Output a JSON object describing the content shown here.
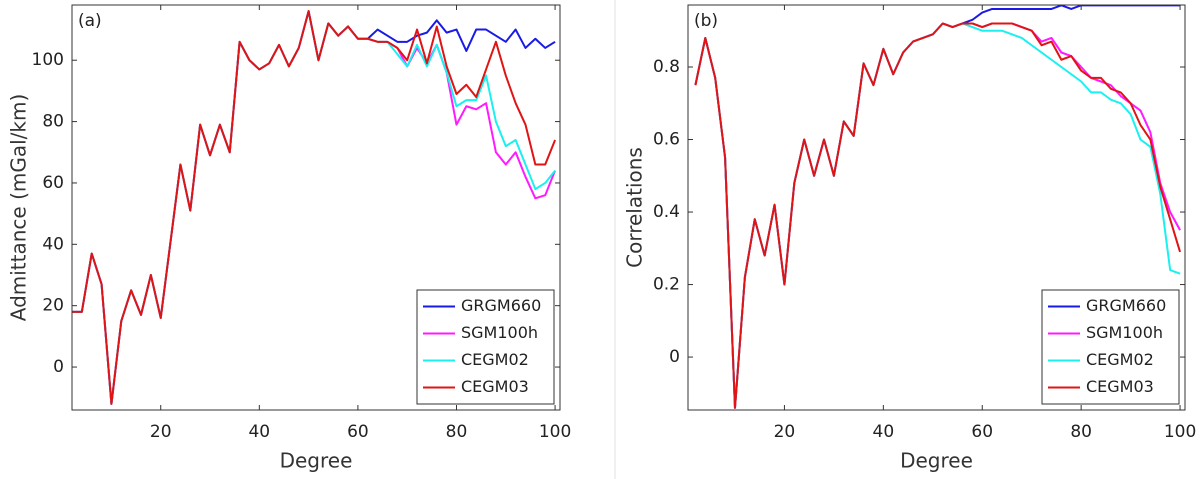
{
  "chart_data": [
    {
      "type": "line",
      "annotation": "(a)",
      "xlabel": "Degree",
      "ylabel": "Admittance (mGal/km)",
      "x": [
        2,
        4,
        6,
        8,
        10,
        12,
        14,
        16,
        18,
        20,
        22,
        24,
        26,
        28,
        30,
        32,
        34,
        36,
        38,
        40,
        42,
        44,
        46,
        48,
        50,
        52,
        54,
        56,
        58,
        60,
        62,
        64,
        66,
        68,
        70,
        72,
        74,
        76,
        78,
        80,
        82,
        84,
        86,
        88,
        90,
        92,
        94,
        96,
        98,
        100
      ],
      "xlim": [
        2,
        101
      ],
      "xticks": [
        20,
        40,
        60,
        80,
        100
      ],
      "ylim": [
        -14,
        118
      ],
      "yticks": [
        0,
        20,
        40,
        60,
        80,
        100
      ],
      "legend": "lower right",
      "series": [
        {
          "name": "GRGM660",
          "color": "#1a1ae6",
          "values": [
            18,
            18,
            37,
            27,
            -12,
            15,
            25,
            17,
            30,
            16,
            41,
            66,
            51,
            79,
            69,
            79,
            70,
            106,
            100,
            97,
            99,
            105,
            98,
            104,
            116,
            100,
            112,
            108,
            111,
            107,
            107,
            110,
            108,
            106,
            106,
            108,
            109,
            113,
            109,
            110,
            103,
            110,
            110,
            108,
            106,
            110,
            104,
            107,
            104,
            106
          ]
        },
        {
          "name": "SGM100h",
          "color": "#ff1aff",
          "values": [
            18,
            18,
            37,
            27,
            -12,
            15,
            25,
            17,
            30,
            16,
            41,
            66,
            51,
            79,
            69,
            79,
            70,
            106,
            100,
            97,
            99,
            105,
            98,
            104,
            116,
            100,
            112,
            108,
            111,
            107,
            107,
            106,
            106,
            104,
            98,
            104,
            99,
            105,
            96,
            79,
            85,
            84,
            86,
            70,
            66,
            70,
            62,
            55,
            56,
            64
          ]
        },
        {
          "name": "CEGM02",
          "color": "#1af0f0",
          "values": [
            18,
            18,
            37,
            27,
            -12,
            15,
            25,
            17,
            30,
            16,
            41,
            66,
            51,
            79,
            69,
            79,
            70,
            106,
            100,
            97,
            99,
            105,
            98,
            104,
            116,
            100,
            112,
            108,
            111,
            107,
            107,
            106,
            106,
            102,
            98,
            105,
            98,
            105,
            96,
            85,
            87,
            87,
            95,
            80,
            72,
            74,
            66,
            58,
            60,
            64
          ]
        },
        {
          "name": "CEGM03",
          "color": "#e01414",
          "values": [
            18,
            18,
            37,
            27,
            -12,
            15,
            25,
            17,
            30,
            16,
            41,
            66,
            51,
            79,
            69,
            79,
            70,
            106,
            100,
            97,
            99,
            105,
            98,
            104,
            116,
            100,
            112,
            108,
            111,
            107,
            107,
            106,
            106,
            104,
            100,
            110,
            99,
            111,
            98,
            89,
            92,
            88,
            97,
            106,
            95,
            86,
            79,
            66,
            66,
            74
          ]
        }
      ]
    },
    {
      "type": "line",
      "annotation": "(b)",
      "xlabel": "Degree",
      "ylabel": "Correlations",
      "x": [
        2,
        4,
        6,
        8,
        10,
        12,
        14,
        16,
        18,
        20,
        22,
        24,
        26,
        28,
        30,
        32,
        34,
        36,
        38,
        40,
        42,
        44,
        46,
        48,
        50,
        52,
        54,
        56,
        58,
        60,
        62,
        64,
        66,
        68,
        70,
        72,
        74,
        76,
        78,
        80,
        82,
        84,
        86,
        88,
        90,
        92,
        94,
        96,
        98,
        100
      ],
      "xlim": [
        0.5,
        101
      ],
      "xticks": [
        20,
        40,
        60,
        80,
        100
      ],
      "ylim": [
        -0.146,
        0.971
      ],
      "yticks": [
        0,
        0.2,
        0.4,
        0.6,
        0.8
      ],
      "legend": "lower right",
      "series": [
        {
          "name": "GRGM660",
          "color": "#1a1ae6",
          "values": [
            0.75,
            0.88,
            0.77,
            0.55,
            -0.14,
            0.22,
            0.38,
            0.28,
            0.42,
            0.2,
            0.48,
            0.6,
            0.5,
            0.6,
            0.5,
            0.65,
            0.61,
            0.81,
            0.75,
            0.85,
            0.78,
            0.84,
            0.87,
            0.88,
            0.89,
            0.92,
            0.91,
            0.92,
            0.93,
            0.95,
            0.96,
            0.96,
            0.96,
            0.96,
            0.96,
            0.96,
            0.96,
            0.97,
            0.96,
            0.97,
            0.97,
            0.97,
            0.97,
            0.97,
            0.97,
            0.97,
            0.97,
            0.97,
            0.97,
            0.97
          ]
        },
        {
          "name": "SGM100h",
          "color": "#ff1aff",
          "values": [
            0.75,
            0.88,
            0.77,
            0.55,
            -0.14,
            0.22,
            0.38,
            0.28,
            0.42,
            0.2,
            0.48,
            0.6,
            0.5,
            0.6,
            0.5,
            0.65,
            0.61,
            0.81,
            0.75,
            0.85,
            0.78,
            0.84,
            0.87,
            0.88,
            0.89,
            0.92,
            0.91,
            0.92,
            0.92,
            0.91,
            0.92,
            0.92,
            0.92,
            0.91,
            0.9,
            0.87,
            0.88,
            0.84,
            0.83,
            0.8,
            0.77,
            0.76,
            0.75,
            0.72,
            0.7,
            0.68,
            0.62,
            0.48,
            0.4,
            0.35
          ]
        },
        {
          "name": "CEGM02",
          "color": "#1af0f0",
          "values": [
            0.75,
            0.88,
            0.77,
            0.55,
            -0.14,
            0.22,
            0.38,
            0.28,
            0.42,
            0.2,
            0.48,
            0.6,
            0.5,
            0.6,
            0.5,
            0.65,
            0.61,
            0.81,
            0.75,
            0.85,
            0.78,
            0.84,
            0.87,
            0.88,
            0.89,
            0.92,
            0.91,
            0.92,
            0.91,
            0.9,
            0.9,
            0.9,
            0.89,
            0.88,
            0.86,
            0.84,
            0.82,
            0.8,
            0.78,
            0.76,
            0.73,
            0.73,
            0.71,
            0.7,
            0.67,
            0.6,
            0.58,
            0.45,
            0.24,
            0.23
          ]
        },
        {
          "name": "CEGM03",
          "color": "#e01414",
          "values": [
            0.75,
            0.88,
            0.77,
            0.55,
            -0.14,
            0.22,
            0.38,
            0.28,
            0.42,
            0.2,
            0.48,
            0.6,
            0.5,
            0.6,
            0.5,
            0.65,
            0.61,
            0.81,
            0.75,
            0.85,
            0.78,
            0.84,
            0.87,
            0.88,
            0.89,
            0.92,
            0.91,
            0.92,
            0.92,
            0.91,
            0.92,
            0.92,
            0.92,
            0.91,
            0.9,
            0.86,
            0.87,
            0.82,
            0.83,
            0.79,
            0.77,
            0.77,
            0.74,
            0.73,
            0.7,
            0.64,
            0.6,
            0.47,
            0.38,
            0.29
          ]
        }
      ]
    }
  ]
}
